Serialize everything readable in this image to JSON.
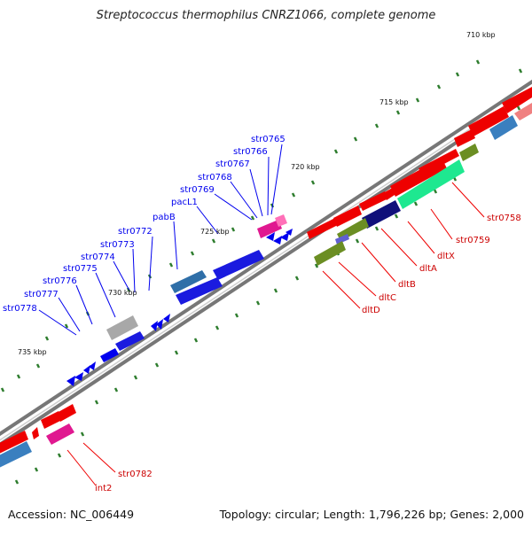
{
  "title": "Streptococcus thermophilus CNRZ1066, complete genome",
  "accession": "Accession: NC_006449",
  "summary": "Topology: circular; Length: 1,796,226 bp; Genes: 2,000",
  "kbp_markers": [
    "710 kbp",
    "715 kbp",
    "720 kbp",
    "725 kbp",
    "730 kbp",
    "735 kbp"
  ],
  "forward_gene_labels": [
    "str0765",
    "str0766",
    "str0767",
    "str0768",
    "str0769",
    "pacL1",
    "pabB",
    "str0772",
    "str0773",
    "str0774",
    "str0775",
    "str0776",
    "str0777",
    "str0778"
  ],
  "reverse_gene_labels": [
    "str0758",
    "str0759",
    "dltX",
    "dltA",
    "dltB",
    "dltC",
    "dltD",
    "str0782",
    "int2"
  ],
  "colors": {
    "forward_gene": "#0000ee",
    "reverse_gene": "#ee0000",
    "backbone": "#777777",
    "tick": "#2e7d2e"
  }
}
